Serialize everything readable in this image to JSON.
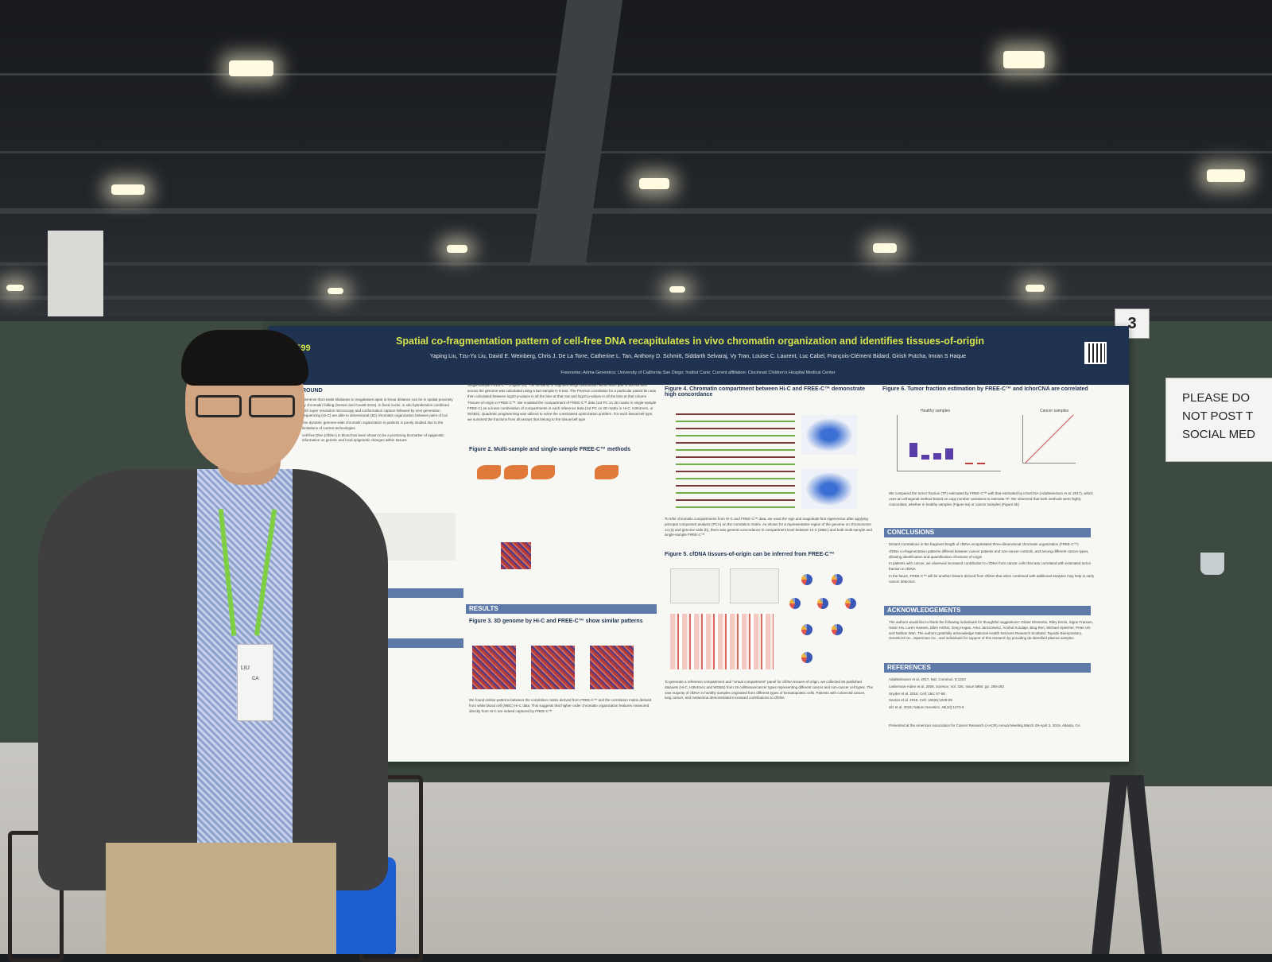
{
  "booth_number": "3",
  "sign": {
    "lines": [
      "PLEASE DO",
      "NOT POST T",
      "SOCIAL MED"
    ]
  },
  "badge": {
    "lines": [
      "LIU",
      "CA"
    ]
  },
  "poster": {
    "number": "#3599",
    "title": "Spatial co-fragmentation pattern of cell-free DNA recapitulates in vivo chromatin organization and identifies tissues-of-origin",
    "authors": "Yaping Liu, Tzu-Yu Liu, David E. Weinberg, Chris J. De La Torre, Catherine L. Tan, Anthony D. Schmitt, Siddarth Selvaraj, Vy Tran, Louise C. Laurent, Luc Cabel, François-Clément Bidard, Girish Putcha, Imran S Haque",
    "affiliations": "Freenome; Arima Genomics; University of California San Diego; Institut Curie; Current affiliation: Cincinnati Children's Hospital Medical Center",
    "sections": {
      "background": "ROUND",
      "fig2": "Figure 2. Multi-sample and single-sample FREE-C™ methods",
      "results": "RESULTS",
      "fig3": "Figure 3. 3D genome by Hi-C and FREE-C™ show similar patterns",
      "fig4": "Figure 4. Chromatin compartment between Hi-C and FREE-C™ demonstrate high concordance",
      "fig5": "Figure 5. cfDNA tissues-of-origin can be inferred from FREE-C™",
      "fig6": "Figure 6. Tumor fraction estimation by FREE-C™ and IchorCNA are correlated",
      "conclusions": "CONCLUSIONS",
      "acknowledgements": "ACKNOWLEDGEMENTS",
      "references": "REFERENCES"
    },
    "col2_text": [
      "Single-sample FREE-C™ (Figure 2b): The similarity of fragment length distribution within each pair of 500-kb bins across the genome was calculated using a two-sample K-S test. The Pearson correlation for a particular paired bin was then calculated between log10 p-values in all the bins at that row and log10 p-values in all the bins at that column",
      "Tissues-of-origin in FREE-C™: We modeled the compartment of FREE-C™ data (1st PC on 2D matrix in single-sample FREE-C) as a linear combination of compartments in each reference data (1st PC on 2D matrix in Hi-C, H3K4me1, or WGBS). Quadratic programming was utilized to solve the constrained optimization problem. For each tissue/cell type, we summed the fractions from all assays that belong to the tissue/cell type"
    ],
    "fig3_note": "We found similar patterns between the correlation matrix derived from FREE-C™ and the correlation matrix derived from white blood cell (WBC) Hi-C data. This suggests that higher-order chromatin organization features measured directly from Hi-C are indeed captured by FREE-C™",
    "fig4_note": "To infer chromatin compartments from Hi-C and FREE-C™ data, we used the sign and magnitude first eigenvector after applying principal component analysis (PCA) on the correlation matrix. As shown for a representative region of the genome on chromosome 14 (a) and genome wide (b), there was general concordance in compartment level between Hi-C (WBC) and both multi-sample and single-sample FREE-C™",
    "fig5_note": "To generate a reference compartment and \"virtual compartment\" panel for cfDNA tissues-of-origin, we collected 65 published datasets (Hi-C, H3K4me1 and WGBS) from 19 cell/tissue/cancer types representing different cancer and non-cancer cell types. The vast majority of cfDNA in healthy samples originated from different types of hematopoietic cells. Patients with colorectal cancer, lung cancer, and melanoma demonstrated increased contributions to cfDNA",
    "fig6_labels": {
      "left": "Healthy samples",
      "right": "Cancer samples"
    },
    "fig6_note": "We compared the tumor fraction (TF) estimated by FREE-C™ with that estimated by ichorCNA (Adalsteinsson et al. 2017), which uses an orthogonal method based on copy number variations to estimate TF. We observed that both methods were highly concordant, whether in healthy samples (Figure 6a) or cancer samples (Figure 6b)",
    "conclusions": [
      "Distant correlations in the fragment length of cfDNA recapitulated three-dimensional chromatin organization (FREE-C™)",
      "cfDNA co-fragmentation patterns differed between cancer patients and non-cancer controls, and among different cancer types, allowing identification and quantification of tissues-of-origin",
      "In patients with cancer, we observed increased contribution to cfDNA from cancer cells that was correlated with estimated tumor fraction in cfDNA",
      "In the future, FREE-C™ will be another feature derived from cfDNA that when combined with additional analytes may help in early cancer detection"
    ],
    "acknowledgements": "The authors would like to thank the following individuals for thoughtful suggestions: Olivier Elemento, Riley Ennis, Signe Fransen, Gavin Ha, Loren Hansen, Ellen Hefzer, Greg Hogan, Artur Jaroszewicz, Anshul Kundaje, Bing Ren, Michael Speicher, Peter Ulz and Nathan Wan. The authors gratefully acknowledge National Health Services Research Scotland, Tayside Biorepository, Geneticist Inc., iSpecimen Inc., and individuals for support of this research by providing de-identified plasma samples",
    "references": [
      "Adalsteinsson et al. 2017, Nat. Commun. 8:1324",
      "Lieberman-Aiden et al. 2009, Science, Vol. 326, Issue 5950, pp. 289-293",
      "Snyder et al. 2016; Cell; 164; 57-68",
      "Sexton et al. 2015; Cell; 160(6):1049-59",
      "Ulz et al. 2016; Nature Genetics, 48(10):1273-8"
    ],
    "presented": "Presented at the American Association for Cancer Research (AACR) Annual Meeting March 29-April 3, 2019, Atlanta, GA",
    "left_col_text": [
      "elements that reside kilobases to megabases apart in linear distance can be in spatial proximity by chromatin folding (Sexton and Cavalli 2015). In fixed nuclei, in situ hybridization combined with super resolution microscopy and conformation capture followed by next generation sequencing (Hi-C) are able to dimensional (3D) chromatin organization between pairs of loci",
      "one dynamic genome-wide chromatin organization in patients is poorly studied due to the limitations of current technologies",
      "cell-free DNA (cfDNA) in blood has been shown to be a promising biomarker of epigenetic information on genetic and local epigenetic changes within tissues"
    ]
  },
  "colors": {
    "poster_header": "#1f3350",
    "title_accent": "#d7e34a",
    "section_bar": "#5d7aa8",
    "booth_panel": "#3d4a41"
  }
}
